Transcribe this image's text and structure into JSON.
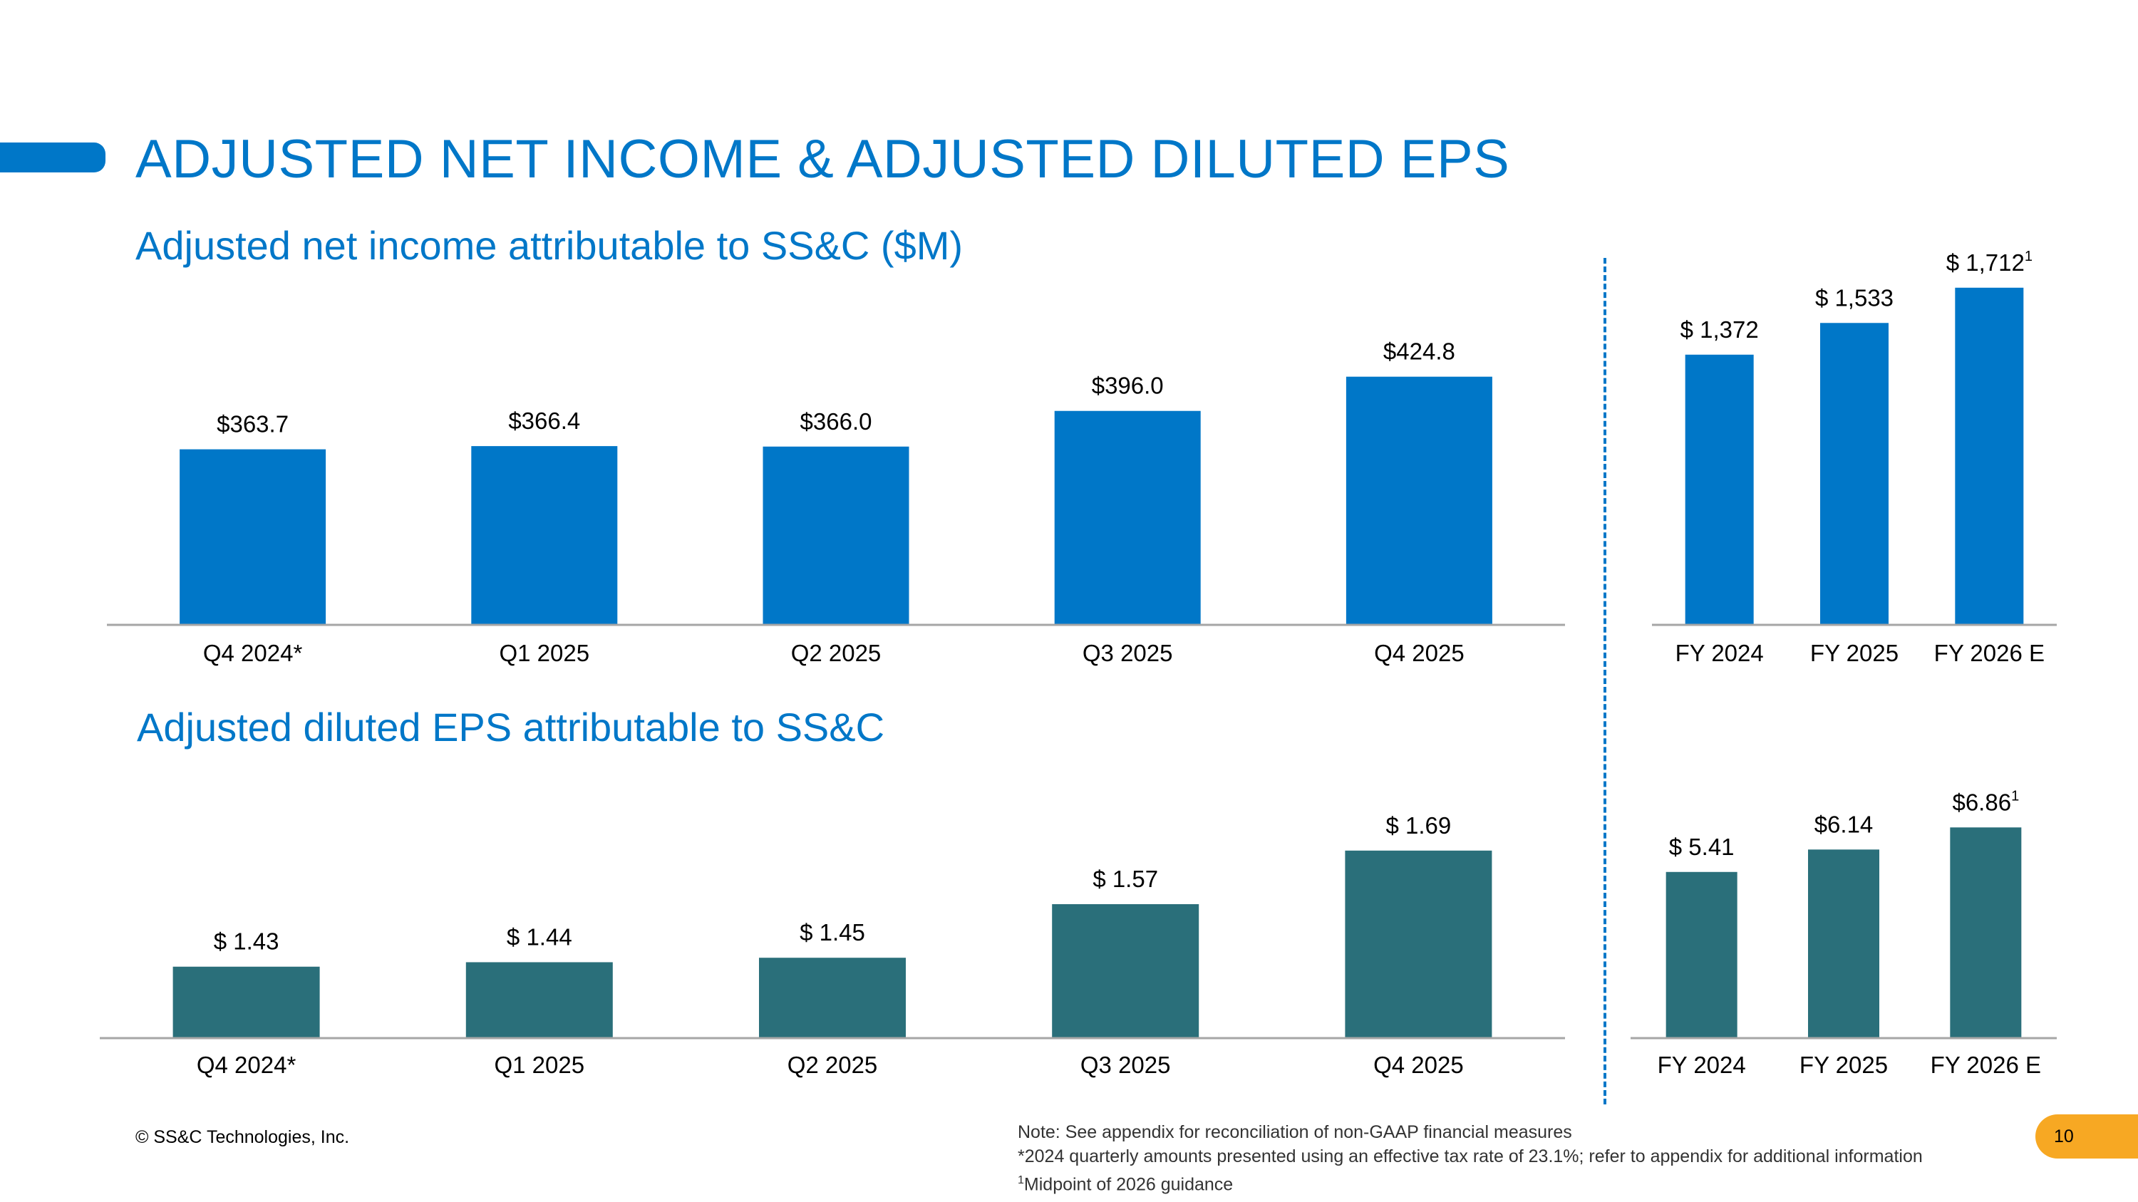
{
  "page_title": "ADJUSTED NET INCOME & ADJUSTED DILUTED EPS",
  "colors": {
    "primary_blue": "#0077C8",
    "teal": "#2A6F7A",
    "badge": "#F7A823"
  },
  "sections": {
    "net_income_title": "Adjusted net income attributable to SS&C ($M)",
    "eps_title": "Adjusted diluted EPS attributable to SS&C"
  },
  "chart_data": [
    {
      "id": "ni_quarterly",
      "type": "bar",
      "title": "Adjusted net income attributable to SS&C ($M)",
      "categories": [
        "Q4 2024*",
        "Q1 2025",
        "Q2 2025",
        "Q3 2025",
        "Q4 2025"
      ],
      "values": [
        363.7,
        366.4,
        366.0,
        396.0,
        424.8
      ],
      "labels": [
        "$363.7",
        "$366.4",
        "$366.0",
        "$396.0",
        "$424.8"
      ],
      "label_sups": [
        "",
        "",
        "",
        "",
        ""
      ],
      "ylim": [
        216,
        433
      ],
      "color": "#0077C8"
    },
    {
      "id": "ni_annual",
      "type": "bar",
      "title": "Adjusted net income attributable to SS&C ($M)",
      "categories": [
        "FY 2024",
        "FY 2025",
        "FY 2026 E"
      ],
      "values": [
        1372,
        1533,
        1712
      ],
      "labels": [
        "$ 1,372",
        "$ 1,533",
        "$ 1,712"
      ],
      "label_sups": [
        "",
        "",
        "1"
      ],
      "ylim": [
        0,
        1780
      ],
      "color": "#0077C8"
    },
    {
      "id": "eps_quarterly",
      "type": "bar",
      "title": "Adjusted diluted EPS attributable to SS&C",
      "categories": [
        "Q4 2024*",
        "Q1 2025",
        "Q2 2025",
        "Q3 2025",
        "Q4 2025"
      ],
      "values": [
        1.43,
        1.44,
        1.45,
        1.57,
        1.69
      ],
      "labels": [
        "$ 1.43",
        "$ 1.44",
        "$ 1.45",
        "$ 1.57",
        "$ 1.69"
      ],
      "label_sups": [
        "",
        "",
        "",
        "",
        ""
      ],
      "ylim": [
        1.27,
        1.72
      ],
      "color": "#2A6F7A"
    },
    {
      "id": "eps_annual",
      "type": "bar",
      "title": "Adjusted diluted EPS attributable to SS&C",
      "categories": [
        "FY 2024",
        "FY 2025",
        "FY 2026 E"
      ],
      "values": [
        5.41,
        6.14,
        6.86
      ],
      "labels": [
        "$ 5.41",
        "$6.14",
        "$6.86"
      ],
      "label_sups": [
        "",
        "",
        "1"
      ],
      "ylim": [
        0,
        7.4
      ],
      "color": "#2A6F7A"
    }
  ],
  "footer": {
    "copyright": "© SS&C Technologies, Inc.",
    "note1": "Note: See appendix for reconciliation of non-GAAP financial measures",
    "note2": "*2024 quarterly amounts presented using an effective tax rate of 23.1%; refer to appendix for additional information",
    "note3_sup": "1",
    "note3": "Midpoint of 2026 guidance",
    "page_number": "10"
  }
}
